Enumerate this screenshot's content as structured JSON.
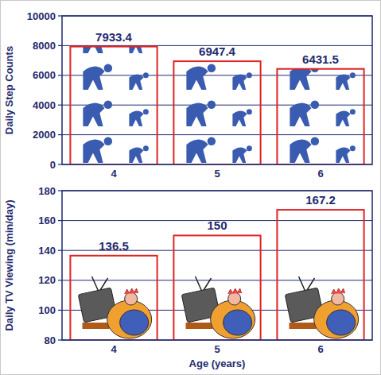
{
  "chart_data": [
    {
      "type": "bar",
      "y_label": "Daily Step Counts",
      "categories": [
        "4",
        "5",
        "6"
      ],
      "values": [
        7933.4,
        6947.4,
        6431.5
      ],
      "color": "#e02424",
      "ylim": [
        0,
        10000
      ],
      "yticks": [
        0,
        2000,
        4000,
        6000,
        8000,
        10000
      ],
      "grid": true,
      "data_labels": true
    },
    {
      "type": "bar",
      "y_label": "Daily TV Viewing (min/day)",
      "x_label": "Age (years)",
      "categories": [
        "4",
        "5",
        "6"
      ],
      "values": [
        136.5,
        150,
        167.2
      ],
      "color": "#e02424",
      "ylim": [
        80,
        180
      ],
      "yticks": [
        80,
        100,
        120,
        140,
        160,
        180
      ],
      "grid": true,
      "data_labels": true
    }
  ]
}
